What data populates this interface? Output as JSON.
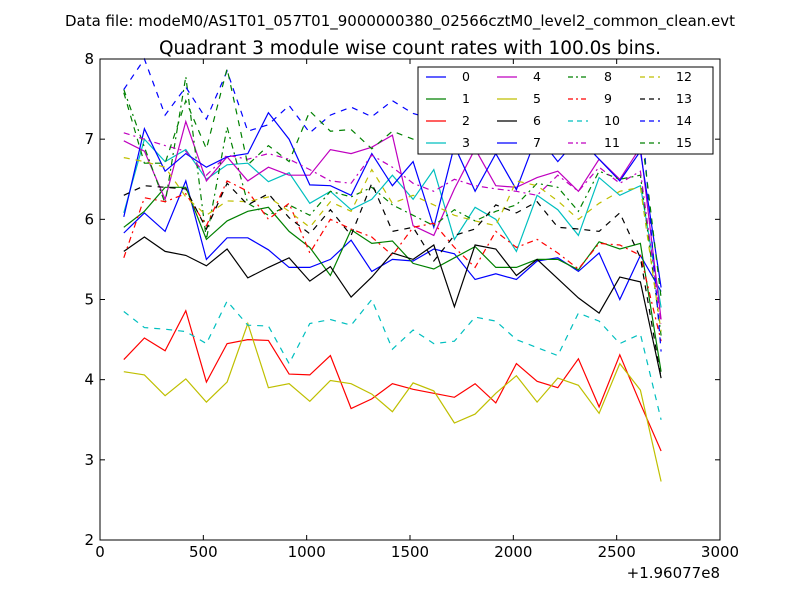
{
  "chart_data": {
    "type": "line",
    "suptitle": "Data file: modeM0/AS1T01_057T01_9000000380_02566cztM0_level2_common_clean.evt",
    "title": "Quadrant 3 module wise count rates with 100.0s bins.",
    "xlabel": "",
    "ylabel": "",
    "x_offset_label": "+1.96077e8",
    "xlim": [
      0,
      3000
    ],
    "ylim": [
      2,
      8
    ],
    "x_ticks": [
      "0",
      "500",
      "1000",
      "1500",
      "2000",
      "2500",
      "3000"
    ],
    "y_ticks": [
      "2",
      "3",
      "4",
      "5",
      "6",
      "7",
      "8"
    ],
    "grid": false,
    "legend_position": "top-right",
    "x": [
      115,
      215,
      315,
      415,
      515,
      615,
      715,
      815,
      915,
      1015,
      1115,
      1215,
      1315,
      1415,
      1515,
      1615,
      1715,
      1815,
      1915,
      2015,
      2115,
      2215,
      2315,
      2415,
      2515,
      2615,
      2715
    ],
    "series": [
      {
        "name": "0",
        "color": "#0000ff",
        "dash": "solid",
        "values": [
          5.83,
          6.08,
          5.85,
          6.48,
          5.5,
          5.77,
          5.77,
          5.62,
          5.4,
          5.4,
          5.5,
          5.74,
          5.35,
          5.5,
          5.48,
          5.63,
          5.57,
          5.25,
          5.32,
          5.25,
          5.48,
          5.52,
          5.35,
          5.58,
          5.0,
          5.55,
          5.1
        ]
      },
      {
        "name": "1",
        "color": "#008000",
        "dash": "solid",
        "values": [
          5.9,
          6.1,
          6.4,
          6.4,
          5.75,
          5.98,
          6.1,
          6.15,
          5.85,
          5.65,
          5.3,
          5.87,
          5.7,
          5.73,
          5.45,
          5.38,
          5.52,
          5.66,
          5.4,
          5.4,
          5.5,
          5.5,
          5.37,
          5.72,
          5.63,
          5.7,
          4.1
        ]
      },
      {
        "name": "2",
        "color": "#ff0000",
        "dash": "solid",
        "values": [
          4.25,
          4.52,
          4.36,
          4.86,
          3.97,
          4.45,
          4.5,
          4.49,
          4.07,
          4.06,
          4.3,
          3.64,
          3.76,
          3.95,
          3.88,
          3.83,
          3.78,
          3.95,
          3.71,
          4.2,
          3.98,
          3.9,
          4.26,
          3.66,
          4.31,
          3.7,
          3.11
        ]
      },
      {
        "name": "3",
        "color": "#00bfbf",
        "dash": "solid",
        "values": [
          6.08,
          7.0,
          6.72,
          6.87,
          6.5,
          6.68,
          6.7,
          6.47,
          6.58,
          6.2,
          6.35,
          6.12,
          6.25,
          6.55,
          6.25,
          6.62,
          5.75,
          6.15,
          6.0,
          5.6,
          6.3,
          6.12,
          5.8,
          6.52,
          6.3,
          6.42,
          4.9
        ]
      },
      {
        "name": "4",
        "color": "#bf00bf",
        "dash": "solid",
        "values": [
          6.98,
          6.85,
          6.25,
          7.22,
          6.48,
          6.78,
          6.48,
          6.65,
          6.55,
          6.55,
          6.87,
          6.82,
          6.9,
          7.05,
          5.92,
          5.8,
          6.38,
          6.88,
          6.42,
          6.4,
          6.52,
          6.6,
          6.35,
          6.75,
          6.5,
          6.9,
          4.75
        ]
      },
      {
        "name": "5",
        "color": "#bfbf00",
        "dash": "solid",
        "values": [
          4.1,
          4.06,
          3.8,
          4.01,
          3.72,
          3.97,
          4.7,
          3.9,
          3.95,
          3.73,
          3.99,
          3.95,
          3.82,
          3.6,
          3.96,
          3.86,
          3.46,
          3.57,
          3.83,
          4.05,
          3.72,
          4.02,
          3.93,
          3.58,
          4.2,
          3.87,
          2.73
        ]
      },
      {
        "name": "6",
        "color": "#000000",
        "dash": "solid",
        "values": [
          5.6,
          5.78,
          5.6,
          5.55,
          5.42,
          5.63,
          5.27,
          5.4,
          5.52,
          5.23,
          5.41,
          5.03,
          5.28,
          5.58,
          5.5,
          5.68,
          4.91,
          5.68,
          5.63,
          5.3,
          5.5,
          5.26,
          5.02,
          4.83,
          5.28,
          5.22,
          4.02
        ]
      },
      {
        "name": "7",
        "color": "#0000ff",
        "dash": "solid",
        "values": [
          6.03,
          7.13,
          6.6,
          6.82,
          6.65,
          6.78,
          6.82,
          7.33,
          7.0,
          6.43,
          6.42,
          6.3,
          6.82,
          6.42,
          6.72,
          5.9,
          6.92,
          6.35,
          6.82,
          6.37,
          7.05,
          6.72,
          7.02,
          6.75,
          6.48,
          6.85,
          5.15
        ]
      },
      {
        "name": "8",
        "color": "#008000",
        "dash": "dashdot",
        "values": [
          7.62,
          6.9,
          6.2,
          7.78,
          5.75,
          7.15,
          6.2,
          6.05,
          6.18,
          6.05,
          6.35,
          6.28,
          6.4,
          6.18,
          6.05,
          5.92,
          6.12,
          5.98,
          6.1,
          6.18,
          6.45,
          6.4,
          6.1,
          6.6,
          6.5,
          6.55,
          4.55
        ]
      },
      {
        "name": "9",
        "color": "#ff0000",
        "dash": "dashdot",
        "values": [
          5.52,
          6.27,
          6.22,
          6.32,
          5.92,
          6.48,
          6.35,
          6.0,
          6.2,
          5.58,
          6.0,
          5.88,
          5.78,
          5.55,
          5.9,
          5.95,
          5.65,
          5.4,
          5.85,
          5.65,
          5.75,
          5.58,
          5.38,
          5.7,
          5.68,
          5.55,
          4.48
        ]
      },
      {
        "name": "10",
        "color": "#00bfbf",
        "dash": "dashed",
        "values": [
          4.85,
          4.65,
          4.63,
          4.6,
          4.45,
          4.98,
          4.68,
          4.67,
          4.2,
          4.7,
          4.75,
          4.68,
          5.0,
          4.38,
          4.62,
          4.45,
          4.48,
          4.78,
          4.73,
          4.5,
          4.4,
          4.3,
          4.83,
          4.73,
          4.45,
          4.57,
          3.5
        ]
      },
      {
        "name": "11",
        "color": "#bf00bf",
        "dash": "dashdot",
        "values": [
          7.08,
          7.0,
          6.92,
          6.85,
          6.55,
          6.8,
          6.75,
          6.82,
          6.75,
          6.62,
          6.48,
          6.45,
          6.8,
          6.65,
          6.45,
          6.35,
          6.5,
          6.42,
          6.38,
          6.35,
          6.3,
          6.55,
          6.35,
          6.65,
          6.45,
          6.6,
          4.7
        ]
      },
      {
        "name": "12",
        "color": "#bfbf00",
        "dash": "dashed",
        "values": [
          6.77,
          6.72,
          6.65,
          6.28,
          6.05,
          6.23,
          6.22,
          6.28,
          6.1,
          5.9,
          6.22,
          6.1,
          6.62,
          6.2,
          6.3,
          6.18,
          6.05,
          5.98,
          5.92,
          6.48,
          6.42,
          6.23,
          6.0,
          6.2,
          6.35,
          6.4,
          4.6
        ]
      },
      {
        "name": "13",
        "color": "#000000",
        "dash": "dashed",
        "values": [
          6.3,
          6.42,
          6.4,
          6.38,
          5.88,
          6.45,
          6.18,
          6.32,
          6.02,
          5.82,
          6.12,
          5.8,
          6.45,
          5.85,
          5.9,
          5.48,
          5.8,
          5.88,
          6.18,
          6.08,
          6.22,
          5.9,
          5.88,
          5.85,
          6.08,
          5.52,
          4.02
        ]
      },
      {
        "name": "14",
        "color": "#0000ff",
        "dash": "dashed",
        "values": [
          7.62,
          8.0,
          7.3,
          7.65,
          7.25,
          7.85,
          7.1,
          7.18,
          7.42,
          7.08,
          7.3,
          7.4,
          7.28,
          7.48,
          7.32,
          7.25,
          7.1,
          7.1,
          7.22,
          7.12,
          7.22,
          7.18,
          7.1,
          7.35,
          7.25,
          7.48,
          4.35
        ]
      },
      {
        "name": "15",
        "color": "#008000",
        "dash": "dashed",
        "values": [
          7.58,
          6.7,
          6.7,
          7.48,
          6.88,
          7.88,
          6.68,
          6.92,
          6.72,
          7.35,
          7.1,
          7.12,
          6.88,
          7.1,
          7.0,
          6.9,
          6.95,
          7.38,
          7.2,
          7.28,
          7.38,
          7.52,
          7.35,
          7.48,
          7.28,
          7.18,
          5.02
        ]
      }
    ]
  }
}
